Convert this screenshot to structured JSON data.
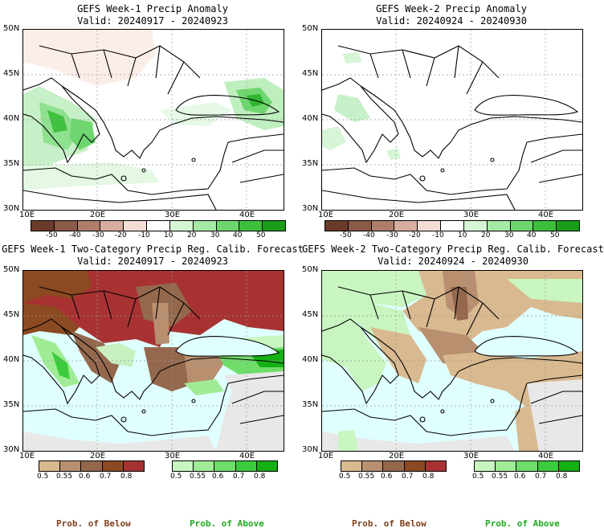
{
  "panels": [
    {
      "title": "GEFS Week-1 Precip Anomaly",
      "valid": "Valid: 20240917 - 20240923"
    },
    {
      "title": "GEFS Week-2 Precip Anomaly",
      "valid": "Valid: 20240924 - 20240930"
    },
    {
      "title": "GEFS Week-1 Two-Category Precip Reg. Calib. Forecast",
      "valid": "Valid: 20240917 - 20240923"
    },
    {
      "title": "GEFS Week-2 Two-Category Precip Reg. Calib. Forecast",
      "valid": "Valid: 20240924 - 20240930"
    }
  ],
  "axes": {
    "lat_labels": [
      "50N",
      "45N",
      "40N",
      "35N",
      "30N"
    ],
    "lon_labels": [
      "10E",
      "20E",
      "30E",
      "40E"
    ]
  },
  "anomaly_colorbar": {
    "labels": [
      "-50",
      "-40",
      "-30",
      "-20",
      "-10",
      "10",
      "20",
      "30",
      "40",
      "50"
    ],
    "colors": [
      "#6b3a2a",
      "#8c5a48",
      "#b07d6b",
      "#d6ad9e",
      "#f4ddd4",
      "#ffffff",
      "#d6f5d6",
      "#a6e8a6",
      "#6fd66f",
      "#3dbf3d",
      "#1a9e1a"
    ]
  },
  "prob_below_colorbar": {
    "labels": [
      "0.5",
      "0.55",
      "0.6",
      "0.7",
      "0.8"
    ],
    "colors": [
      "#d9b98f",
      "#b89070",
      "#94684d",
      "#8c4a22",
      "#a83232"
    ]
  },
  "prob_above_colorbar": {
    "labels": [
      "0.5",
      "0.55",
      "0.6",
      "0.7",
      "0.8"
    ],
    "colors": [
      "#c8f5c0",
      "#a0ec96",
      "#70dd6a",
      "#3ccb3c",
      "#14b014"
    ]
  },
  "footer": {
    "prob_below": "Prob. of Below",
    "prob_above": "Prob. of Above"
  },
  "colors": {
    "prob_below_text": "#7b3f1e",
    "prob_above_text": "#1faa1f",
    "sea": "#e0ffff",
    "no_data": "#e8e8e8"
  }
}
